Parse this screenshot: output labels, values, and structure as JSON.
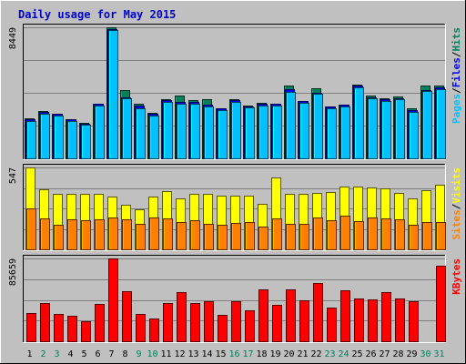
{
  "chart_data": {
    "type": "bar",
    "title": "Daily usage for May 2015",
    "categories": [
      "1",
      "2",
      "3",
      "4",
      "5",
      "6",
      "7",
      "8",
      "9",
      "10",
      "11",
      "12",
      "13",
      "14",
      "15",
      "16",
      "17",
      "18",
      "19",
      "20",
      "21",
      "22",
      "23",
      "24",
      "25",
      "26",
      "27",
      "28",
      "29",
      "30",
      "31"
    ],
    "weekend_days": [
      2,
      3,
      9,
      10,
      16,
      17,
      23,
      24,
      30,
      31
    ],
    "colors": {
      "background": "#C0C0C0",
      "title": "#0000CC",
      "hits": "#00805C",
      "files": "#0000FF",
      "pages": "#00C0FF",
      "visits": "#FFFF00",
      "sites": "#FF8000",
      "kbytes": "#FF0000",
      "weekday_label": "#000000",
      "weekend_label": "#00805C"
    },
    "panels": [
      {
        "id": "hits-files-pages",
        "max_label": "8449",
        "ylim": [
          0,
          8449
        ],
        "legend": [
          {
            "label": "Pages",
            "color": "#00C0FF"
          },
          {
            "label": "/",
            "color": "#000000"
          },
          {
            "label": "Files",
            "color": "#0000FF"
          },
          {
            "label": "/",
            "color": "#000000"
          },
          {
            "label": "Hits",
            "color": "#00805C"
          }
        ],
        "series": [
          {
            "name": "Hits",
            "values": [
              2600,
              3050,
              2900,
              2550,
              2300,
              3500,
              8449,
              4400,
              3500,
              2950,
              3800,
              4050,
              3750,
              3800,
              3230,
              3840,
              3430,
              3560,
              3520,
              4700,
              3690,
              4500,
              3350,
              3460,
              4750,
              4020,
              3900,
              4000,
              3200,
              4670,
              4690
            ]
          },
          {
            "name": "Files",
            "values": [
              2500,
              2980,
              2850,
              2500,
              2250,
              3500,
              8350,
              3950,
              3420,
              2880,
              3760,
              3620,
              3610,
              3440,
              3230,
              3760,
              3360,
              3500,
              3500,
              4430,
              3690,
              4250,
              3350,
              3460,
              4670,
              3950,
              3820,
              3900,
              3130,
              4420,
              4560
            ]
          },
          {
            "name": "Pages",
            "values": [
              2400,
              2850,
              2750,
              2400,
              2200,
              3380,
              8250,
              3850,
              3220,
              2750,
              3620,
              3520,
              3500,
              3350,
              3110,
              3620,
              3270,
              3420,
              3380,
              4280,
              3580,
              4150,
              3250,
              3360,
              4560,
              3850,
              3720,
              3800,
              3020,
              4320,
              4460
            ]
          }
        ]
      },
      {
        "id": "visits-sites",
        "max_label": "547",
        "ylim": [
          0,
          547
        ],
        "legend": [
          {
            "label": "Sites",
            "color": "#FF8000"
          },
          {
            "label": "/",
            "color": "#000000"
          },
          {
            "label": "Visits",
            "color": "#FFFF00"
          }
        ],
        "series": [
          {
            "name": "Visits",
            "values": [
              547,
              400,
              368,
              368,
              368,
              368,
              350,
              300,
              265,
              350,
              386,
              338,
              368,
              368,
              361,
              357,
              360,
              304,
              481,
              368,
              368,
              374,
              382,
              420,
              420,
              411,
              407,
              377,
              342,
              394,
              431
            ]
          },
          {
            "name": "Sites",
            "values": [
              271,
              208,
              165,
              199,
              195,
              203,
              210,
              198,
              170,
              215,
              205,
              185,
              195,
              168,
              165,
              176,
              183,
              150,
              207,
              170,
              169,
              212,
              195,
              227,
              187,
              210,
              208,
              202,
              166,
              180,
              180
            ]
          }
        ]
      },
      {
        "id": "kbytes",
        "max_label": "85659",
        "ylim": [
          0,
          85659
        ],
        "legend": [
          {
            "label": "KBytes",
            "color": "#FF0000"
          }
        ],
        "series": [
          {
            "name": "KBytes",
            "values": [
              29000,
              40000,
              28000,
              26000,
              21000,
              39000,
              85659,
              52000,
              28000,
              24000,
              40000,
              51000,
              40000,
              41000,
              27000,
              41000,
              32000,
              54000,
              38000,
              54000,
              42000,
              60000,
              35000,
              53000,
              44000,
              43000,
              51000,
              44000,
              41000,
              0,
              78000
            ]
          }
        ]
      }
    ]
  }
}
